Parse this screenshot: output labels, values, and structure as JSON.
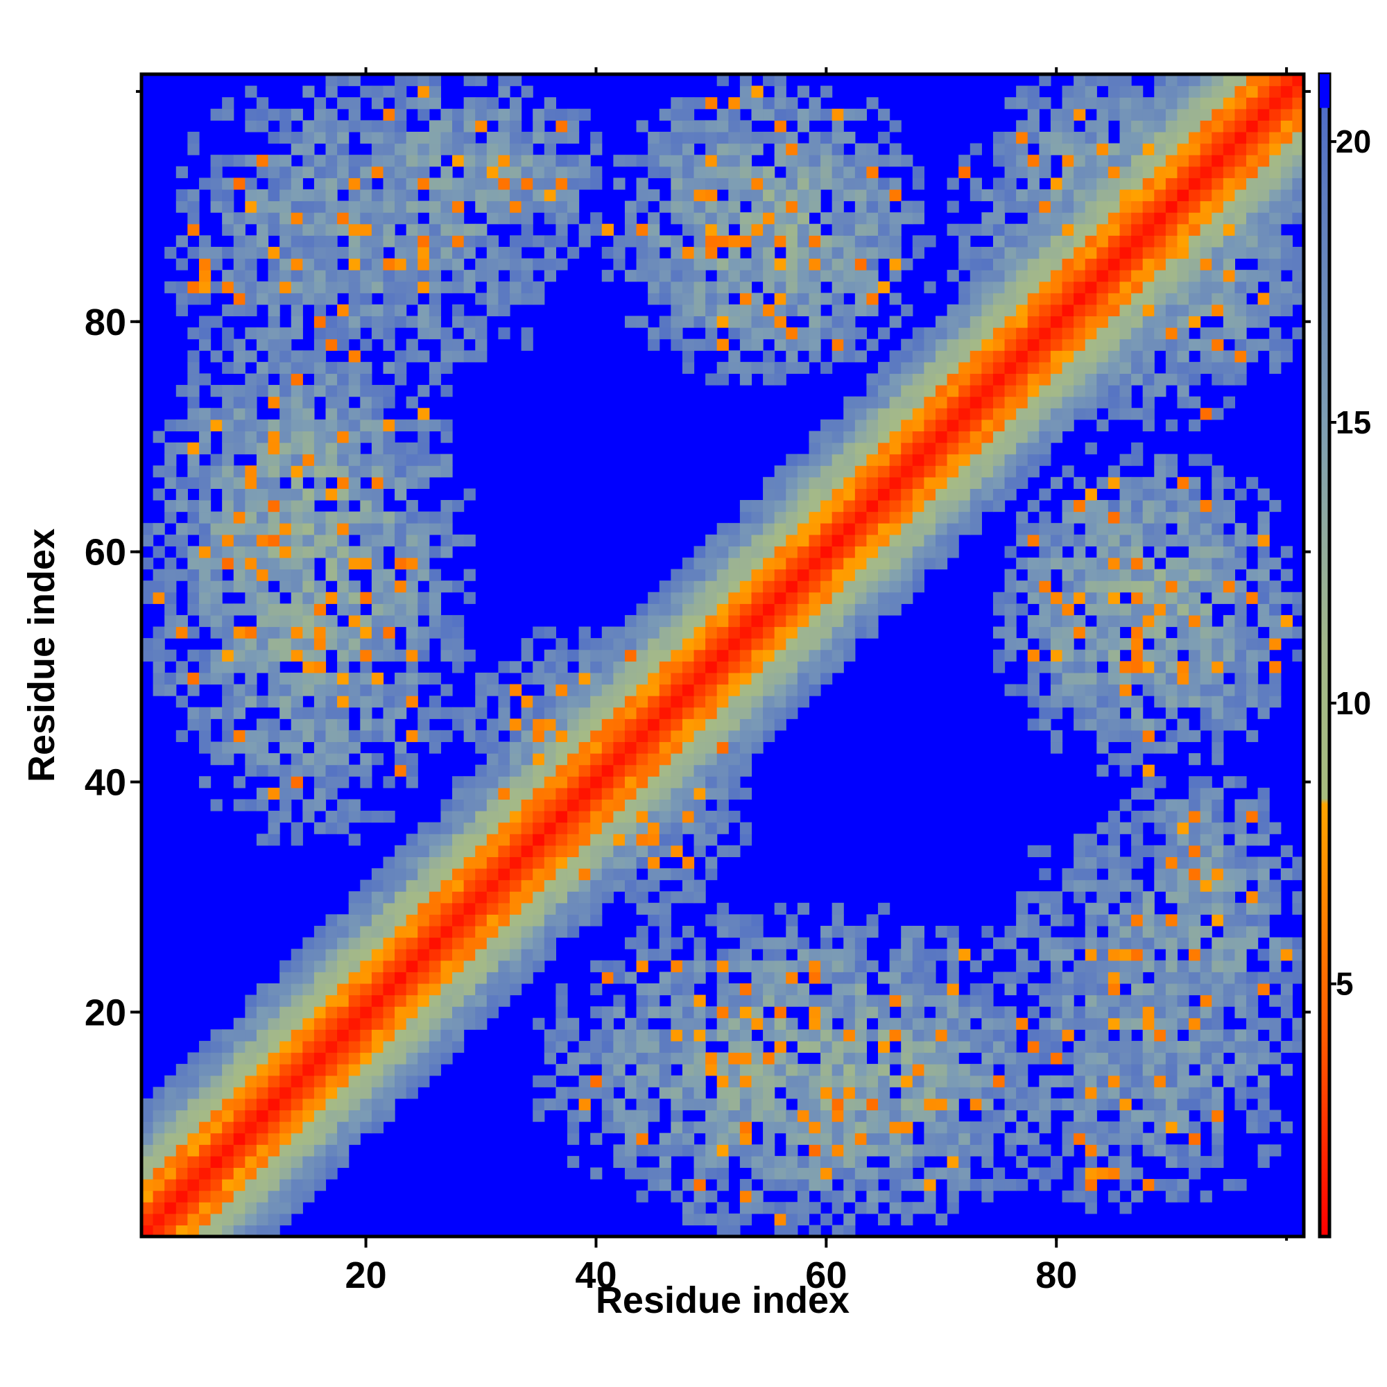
{
  "chart_data": {
    "type": "heatmap",
    "title": "",
    "xlabel": "Residue index",
    "ylabel": "Residue index",
    "n_residues": 101,
    "xlim": [
      0.5,
      101.5
    ],
    "ylim": [
      0.5,
      101.5
    ],
    "x_ticks": [
      20,
      40,
      60,
      80
    ],
    "x_tick_labels": [
      "20",
      "40",
      "60",
      "80"
    ],
    "y_ticks": [
      20,
      40,
      60,
      80
    ],
    "y_tick_labels": [
      "20",
      "40",
      "60",
      "80"
    ],
    "colorbar": {
      "range": [
        0.5,
        21.2
      ],
      "ticks": [
        5,
        10,
        15,
        20
      ],
      "tick_labels": [
        "5",
        "10",
        "15",
        "20"
      ],
      "stops": [
        {
          "value": 0.5,
          "color": "#ff0000"
        },
        {
          "value": 4,
          "color": "#ff5a00"
        },
        {
          "value": 8.2,
          "color": "#ffa500"
        },
        {
          "value": 8.3,
          "color": "#a8bd7f"
        },
        {
          "value": 11,
          "color": "#a3b88a"
        },
        {
          "value": 15,
          "color": "#7e9eb4"
        },
        {
          "value": 19,
          "color": "#5f7dc0"
        },
        {
          "value": 21.2,
          "color": "#4a68c8"
        }
      ],
      "cutoff_color": "#0000ff",
      "cutoff_value": 20
    },
    "diagonal_band": {
      "red_halfwidth": 2,
      "orange_halfwidth": 4,
      "green_halfwidth": 7,
      "blue_halfwidth": 11
    },
    "contact_blobs": [
      {
        "x": [
          2,
          28
        ],
        "y": [
          36,
          82
        ],
        "strength": 0.85
      },
      {
        "x": [
          36,
          82
        ],
        "y": [
          2,
          28
        ],
        "strength": 0.85
      },
      {
        "x": [
          16,
          40
        ],
        "y": [
          84,
          100
        ],
        "strength": 0.7
      },
      {
        "x": [
          84,
          100
        ],
        "y": [
          16,
          40
        ],
        "strength": 0.7
      },
      {
        "x": [
          42,
          68
        ],
        "y": [
          76,
          100
        ],
        "strength": 0.85
      },
      {
        "x": [
          76,
          100
        ],
        "y": [
          42,
          68
        ],
        "strength": 0.85
      },
      {
        "x": [
          72,
          101
        ],
        "y": [
          76,
          101
        ],
        "strength": 0.8
      },
      {
        "x": [
          74,
          101
        ],
        "y": [
          4,
          36
        ],
        "strength": 0.6
      },
      {
        "x": [
          4,
          36
        ],
        "y": [
          74,
          101
        ],
        "strength": 0.6
      },
      {
        "x": [
          28,
          52
        ],
        "y": [
          28,
          52
        ],
        "strength": 0.6
      }
    ]
  }
}
